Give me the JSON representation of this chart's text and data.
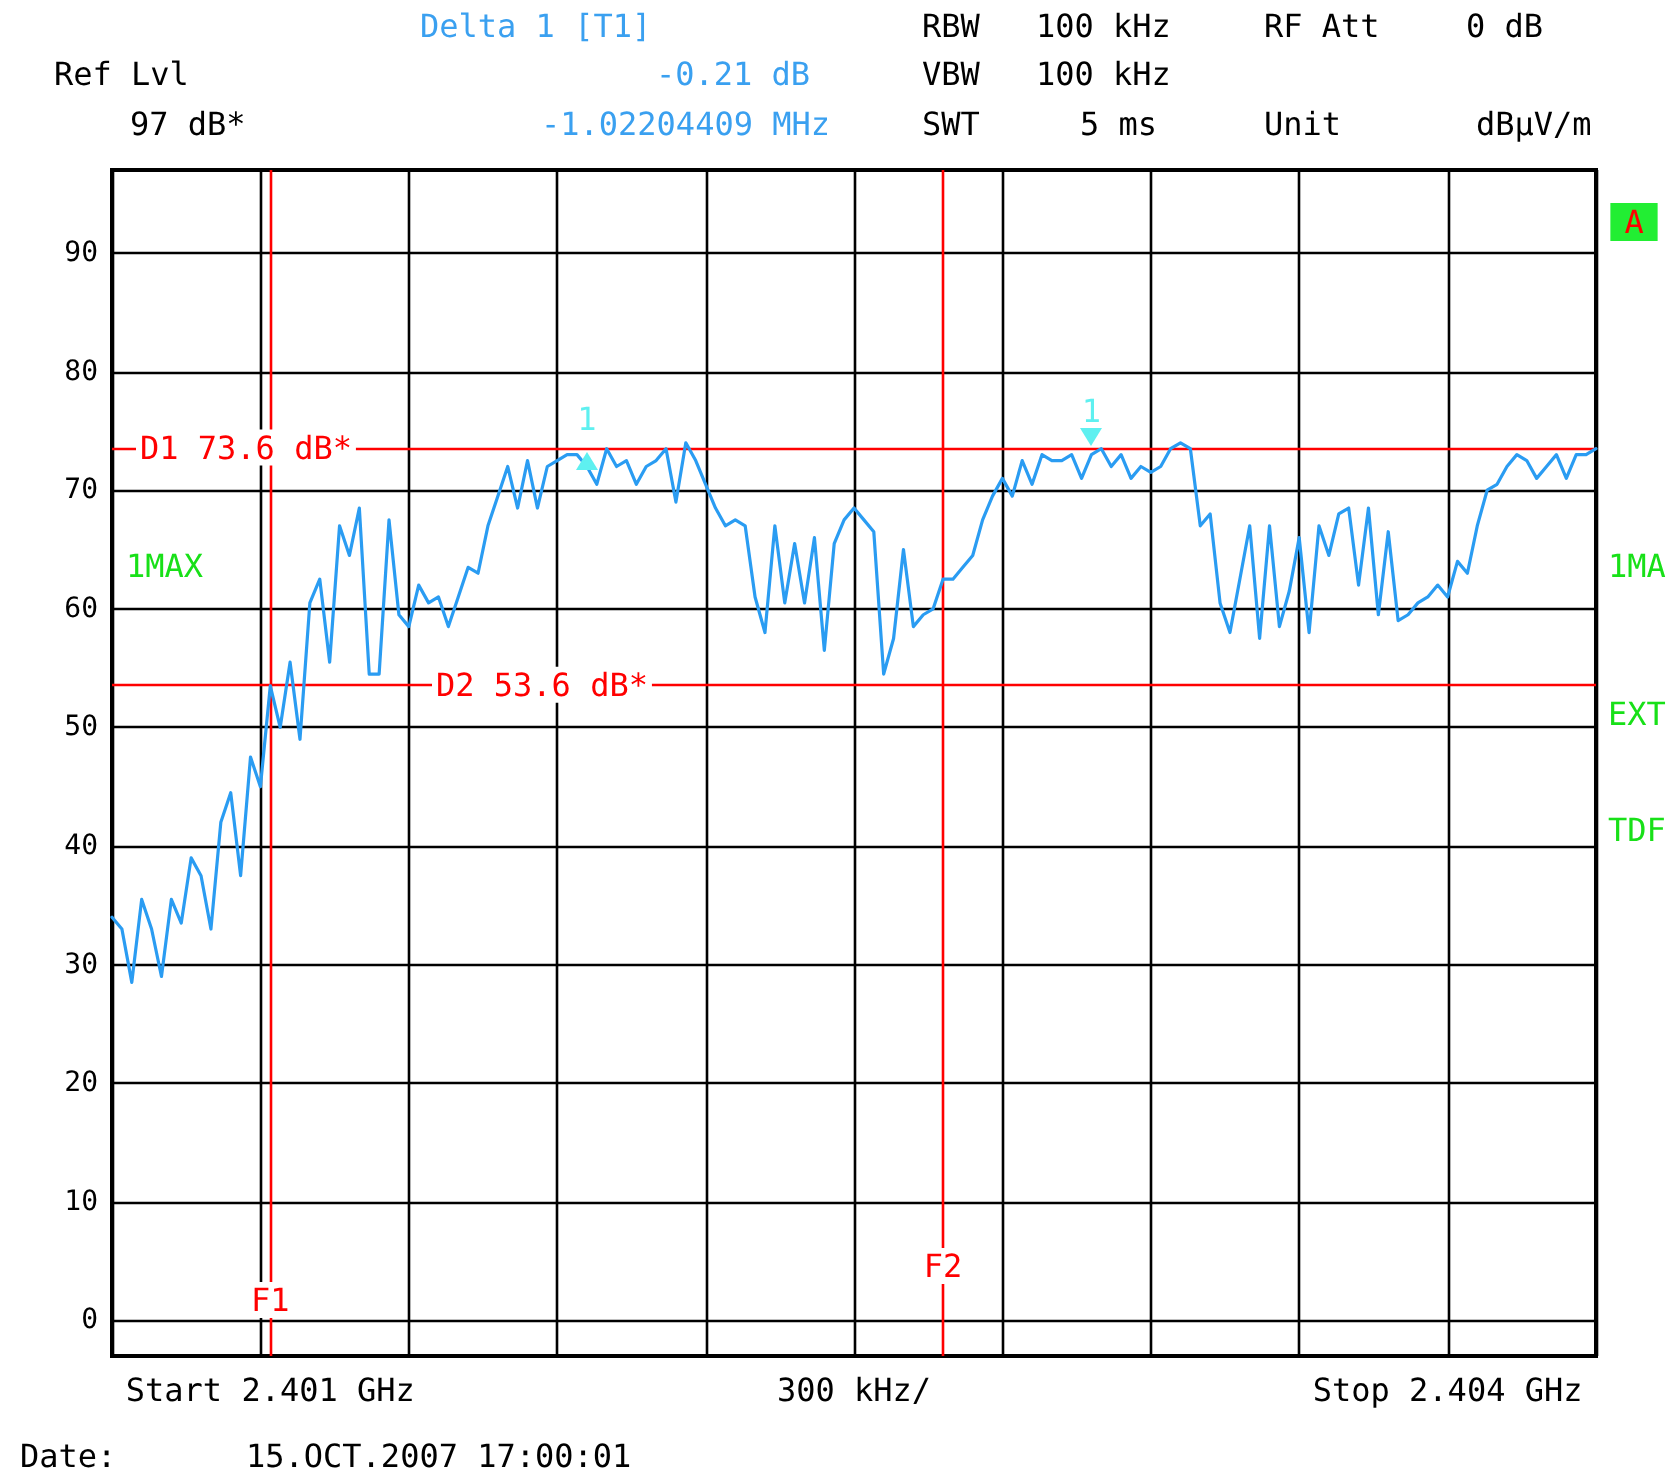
{
  "chart_data": {
    "type": "line",
    "annotations": [
      "Delta 1 [T1]",
      "-0.21 dB",
      "-1.02204409 MHz",
      "Ref Lvl",
      "97 dB*",
      "RBW",
      "100 kHz",
      "VBW",
      "100 kHz",
      "SWT",
      "5 ms",
      "RF Att",
      "0 dB",
      "Unit",
      "dBμV/m",
      "A",
      "1MAX",
      "1MA",
      "EXT",
      "TDF",
      "Date:",
      "15.OCT.2007 17:00:01",
      {
        "text": "1",
        "y": 72.5
      },
      {
        "text": "1",
        "y": 74.5
      },
      "F1",
      "F2"
    ],
    "categories": [
      null,
      null,
      null,
      null,
      null,
      null,
      null,
      null,
      null,
      null,
      null,
      null,
      null,
      null,
      null,
      null,
      "Start 2.401 GHz",
      null,
      null,
      null,
      null,
      null,
      null,
      null,
      null,
      null,
      null,
      null,
      null,
      null,
      null,
      null,
      null,
      null,
      null,
      null,
      null,
      null,
      null,
      null,
      null,
      null,
      null,
      null,
      null,
      null,
      null,
      null,
      null,
      null,
      null,
      null,
      null,
      null,
      null,
      null,
      null,
      null,
      null,
      null,
      null,
      null,
      null,
      null,
      null,
      null,
      null,
      null,
      null,
      null,
      null,
      null,
      null,
      null,
      null,
      "300 kHz/",
      null,
      null,
      null,
      null,
      null,
      null,
      null,
      null,
      null,
      null,
      null,
      null,
      null,
      null,
      null,
      null,
      null,
      null,
      null,
      null,
      null,
      null,
      null,
      null,
      null,
      null,
      null,
      null,
      null,
      null,
      null,
      null,
      null,
      null,
      null,
      null,
      null,
      null,
      null,
      null,
      null,
      null,
      null,
      null,
      null,
      null,
      null,
      null,
      null,
      null,
      null,
      null,
      null,
      null,
      null,
      null,
      null,
      null,
      null,
      "Stop 2.404 GHz",
      null,
      null,
      null,
      null,
      null,
      null,
      null,
      null,
      null,
      null,
      null,
      null,
      null,
      null,
      null
    ],
    "series": [
      {
        "color": "#2a9cf2",
        "values": [
          34,
          33,
          28.5,
          35.5,
          33,
          29,
          35.5,
          33.5,
          39,
          37.5,
          33,
          42,
          44.5,
          37.5,
          47.5,
          45,
          53.5,
          50,
          55.5,
          49,
          60.5,
          62.5,
          55.5,
          67,
          64.5,
          68.5,
          54.5,
          54.5,
          67.5,
          59.5,
          58.5,
          62,
          60.5,
          61,
          58.5,
          61,
          63.5,
          63,
          67,
          69.5,
          72,
          68.5,
          72.5,
          68.5,
          72,
          72.5,
          73,
          73,
          72,
          70.5,
          73.5,
          72,
          72.5,
          70.5,
          72,
          72.5,
          73.5,
          69,
          74,
          72.5,
          70.5,
          68.5,
          67,
          67.5,
          67,
          61,
          58,
          67,
          60.5,
          65.5,
          60.5,
          66,
          56.5,
          65.5,
          67.5,
          68.5,
          67.5,
          66.5,
          54.5,
          57.5,
          65,
          58.5,
          59.5,
          60,
          62.5,
          62.5,
          63.5,
          64.5,
          67.5,
          69.5,
          71,
          69.5,
          72.5,
          70.5,
          73,
          72.5,
          72.5,
          73,
          71,
          73,
          73.5,
          72,
          73,
          71,
          72,
          71.5,
          72,
          73.5,
          74,
          73.5,
          67,
          68,
          60.5,
          58,
          62.5,
          67,
          57.5,
          67,
          58.5,
          61.5,
          66,
          58,
          67,
          64.5,
          68,
          68.5,
          62,
          68.5,
          59.5,
          66.5,
          59,
          59.5,
          60.5,
          61,
          62,
          61,
          64,
          63,
          67,
          70,
          70.5,
          72,
          73,
          72.5,
          71,
          72,
          73,
          71,
          73,
          73,
          73.5
        ]
      }
    ],
    "ylim": [
      -3,
      97
    ],
    "yticks": [
      0,
      10,
      20,
      30,
      40,
      50,
      60,
      70,
      80,
      90
    ],
    "grid": true,
    "ref_lines": [
      {
        "axis": "y",
        "value": 73.6,
        "label": "D1 73.6 dB*",
        "color": "#ff0000"
      },
      {
        "axis": "y",
        "value": 53.6,
        "label": "D2 53.6 dB*",
        "color": "#ff0000"
      }
    ]
  }
}
